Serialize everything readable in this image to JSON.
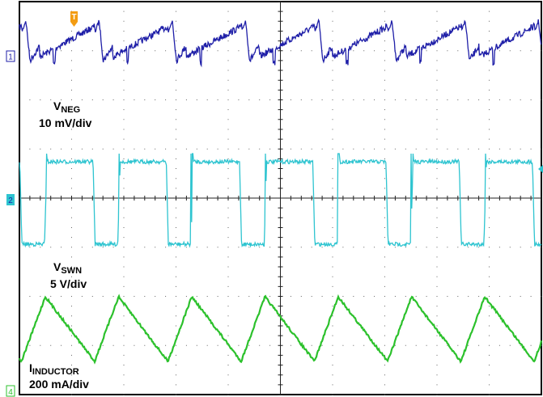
{
  "chart_data": {
    "type": "line",
    "grid": true,
    "x_divisions": 10,
    "y_divisions": 8,
    "trigger_marker": "T",
    "series": [
      {
        "name": "VNEG",
        "label_main": "V",
        "label_sub": "NEG",
        "scale": "10 mV/div",
        "channel": "1",
        "color": "#1f1fa8",
        "waveform": "ripple"
      },
      {
        "name": "VSWN",
        "label_main": "V",
        "label_sub": "SWN",
        "scale": "5 V/div",
        "channel": "2",
        "color": "#2ec4d0",
        "waveform": "square"
      },
      {
        "name": "IINDUCTOR",
        "label_main": "I",
        "label_sub": "INDUCTOR",
        "scale": "200 mA/div",
        "channel": "4",
        "color": "#2cc12c",
        "waveform": "triangle"
      }
    ]
  }
}
